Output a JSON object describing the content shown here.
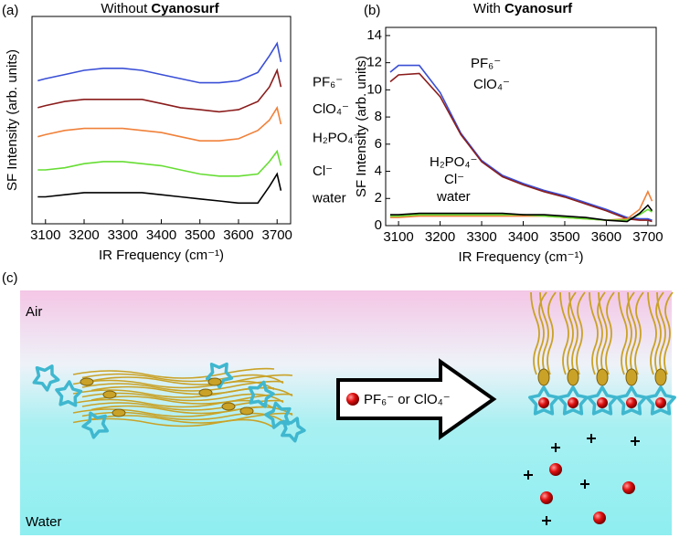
{
  "chart_data": [
    {
      "type": "line",
      "panel_label": "(a)",
      "title": {
        "text": "Without",
        "emphasis": "Cyanosurf"
      },
      "x_label": "IR Frequency (cm⁻¹)",
      "y_label": "SF Intensity (arb. units)",
      "x": [
        3080,
        3100,
        3150,
        3200,
        3250,
        3300,
        3350,
        3400,
        3450,
        3500,
        3550,
        3600,
        3650,
        3680,
        3700,
        3710
      ],
      "xlim": [
        3065,
        3735
      ],
      "xticks": [
        3100,
        3200,
        3300,
        3400,
        3500,
        3600,
        3700
      ],
      "ylim": [
        0,
        10
      ],
      "series": [
        {
          "name": "PF₆⁻",
          "color": "#3a4fd6",
          "values": [
            6.9,
            7.0,
            7.2,
            7.4,
            7.5,
            7.5,
            7.4,
            7.2,
            7.0,
            6.8,
            6.8,
            6.9,
            7.3,
            8.1,
            8.7,
            7.8
          ]
        },
        {
          "name": "ClO₄⁻",
          "color": "#8b1c1c",
          "values": [
            5.6,
            5.7,
            5.9,
            6.0,
            6.0,
            6.0,
            6.0,
            5.8,
            5.6,
            5.5,
            5.4,
            5.5,
            5.9,
            6.6,
            7.4,
            6.6
          ]
        },
        {
          "name": "H₂PO₄⁻",
          "color": "#f0813a",
          "values": [
            4.2,
            4.3,
            4.5,
            4.6,
            4.6,
            4.6,
            4.5,
            4.4,
            4.2,
            4.0,
            4.0,
            4.1,
            4.5,
            5.0,
            5.6,
            4.8
          ]
        },
        {
          "name": "Cl⁻",
          "color": "#66dd33",
          "values": [
            2.6,
            2.6,
            2.7,
            2.9,
            3.0,
            3.0,
            2.9,
            2.8,
            2.6,
            2.4,
            2.3,
            2.3,
            2.4,
            3.0,
            3.5,
            2.8
          ]
        },
        {
          "name": "water",
          "color": "#000000",
          "values": [
            1.3,
            1.3,
            1.4,
            1.5,
            1.5,
            1.5,
            1.5,
            1.4,
            1.3,
            1.2,
            1.1,
            1.0,
            1.0,
            1.8,
            2.4,
            1.6
          ]
        }
      ]
    },
    {
      "type": "line",
      "panel_label": "(b)",
      "title": {
        "text": "With",
        "emphasis": "Cyanosurf"
      },
      "x_label": "IR Frequency (cm⁻¹)",
      "y_label": "SF Intensity (arb. units)",
      "x": [
        3080,
        3100,
        3150,
        3200,
        3250,
        3300,
        3350,
        3400,
        3450,
        3500,
        3550,
        3600,
        3650,
        3680,
        3700,
        3710
      ],
      "xlim": [
        3069,
        3720
      ],
      "xticks": [
        3100,
        3200,
        3300,
        3400,
        3500,
        3600,
        3700
      ],
      "ylim": [
        0,
        14.6
      ],
      "yticks": [
        0,
        2,
        4,
        6,
        8,
        10,
        12,
        14
      ],
      "series": [
        {
          "name": "PF₆⁻",
          "color": "#3a4fd6",
          "values": [
            11.3,
            11.8,
            11.8,
            9.8,
            6.8,
            4.8,
            3.7,
            3.1,
            2.6,
            2.2,
            1.7,
            1.2,
            0.6,
            0.5,
            0.5,
            0.4
          ]
        },
        {
          "name": "ClO₄⁻",
          "color": "#8b1c1c",
          "values": [
            10.6,
            11.1,
            11.2,
            9.5,
            6.7,
            4.7,
            3.6,
            3.0,
            2.5,
            2.1,
            1.6,
            1.1,
            0.5,
            0.4,
            0.4,
            0.3
          ]
        },
        {
          "name": "H₂PO₄⁻",
          "color": "#f0813a",
          "values": [
            0.6,
            0.6,
            0.7,
            0.7,
            0.7,
            0.7,
            0.7,
            0.7,
            0.7,
            0.6,
            0.5,
            0.4,
            0.5,
            1.2,
            2.5,
            1.8
          ]
        },
        {
          "name": "Cl⁻",
          "color": "#66dd33",
          "values": [
            0.7,
            0.7,
            0.8,
            0.8,
            0.8,
            0.8,
            0.8,
            0.8,
            0.7,
            0.6,
            0.5,
            0.4,
            0.4,
            0.8,
            1.2,
            1.0
          ]
        },
        {
          "name": "water",
          "color": "#000000",
          "values": [
            0.8,
            0.8,
            0.9,
            0.9,
            0.9,
            0.9,
            0.9,
            0.8,
            0.8,
            0.7,
            0.6,
            0.4,
            0.3,
            0.9,
            1.5,
            1.1
          ]
        }
      ]
    }
  ],
  "diagram": {
    "panel_label": "(c)",
    "top_label": "Air",
    "bottom_label": "Water",
    "arrow_label": "PF₆⁻ or ClO₄⁻"
  }
}
